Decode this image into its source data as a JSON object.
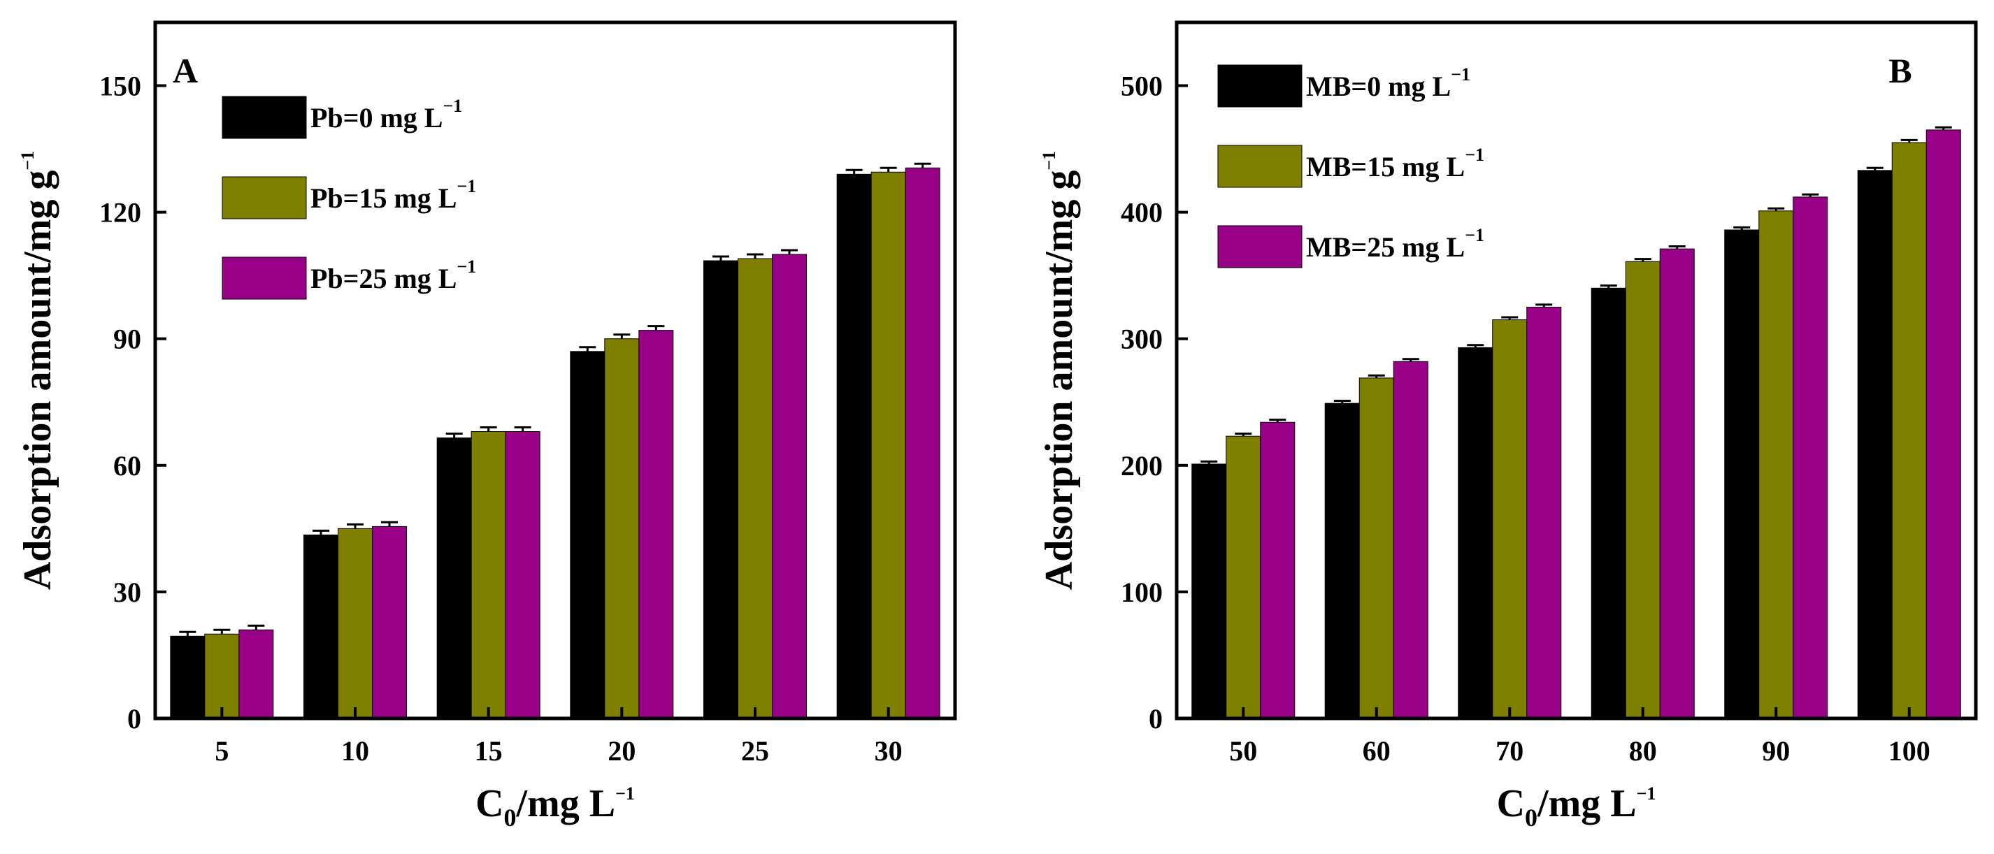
{
  "chart_data": [
    {
      "type": "bar",
      "panel_label": "A",
      "categories": [
        "5",
        "10",
        "15",
        "20",
        "25",
        "30"
      ],
      "series": [
        {
          "name": "Pb=0 mg L",
          "name_sup": "−1",
          "color": "#000000",
          "values": [
            19.5,
            43.5,
            66.5,
            87,
            108.5,
            129
          ],
          "errors": [
            1,
            1,
            1,
            1,
            1,
            1
          ]
        },
        {
          "name": "Pb=15 mg L",
          "name_sup": "−1",
          "color": "#808000",
          "values": [
            20,
            45,
            68,
            90,
            109,
            129.5
          ],
          "errors": [
            1,
            1,
            1,
            1,
            1,
            1
          ]
        },
        {
          "name": "Pb=25 mg L",
          "name_sup": "−1",
          "color": "#990088",
          "values": [
            21,
            45.5,
            68,
            92,
            110,
            130.5
          ],
          "errors": [
            1,
            1,
            1,
            1,
            1,
            1
          ]
        }
      ],
      "ylim": [
        0,
        165
      ],
      "yticks": [
        0,
        30,
        60,
        90,
        120,
        150
      ],
      "xlabel": {
        "main": "C",
        "sub": "0",
        "rest": "/mg L",
        "sup": "−1"
      },
      "ylabel": {
        "main": "Adsorption amount/mg g",
        "sup": "−1"
      },
      "legend_position": "top-left"
    },
    {
      "type": "bar",
      "panel_label": "B",
      "categories": [
        "50",
        "60",
        "70",
        "80",
        "90",
        "100"
      ],
      "series": [
        {
          "name": "MB=0 mg L",
          "name_sup": "−1",
          "color": "#000000",
          "values": [
            201,
            249,
            293,
            340,
            386,
            433
          ],
          "errors": [
            2,
            2,
            2,
            2,
            2,
            2
          ]
        },
        {
          "name": "MB=15 mg L",
          "name_sup": "−1",
          "color": "#808000",
          "values": [
            223,
            269,
            315,
            361,
            401,
            455
          ],
          "errors": [
            2,
            2,
            2,
            2,
            2,
            2
          ]
        },
        {
          "name": "MB=25 mg L",
          "name_sup": "−1",
          "color": "#990088",
          "values": [
            234,
            282,
            325,
            371,
            412,
            465
          ],
          "errors": [
            2,
            2,
            2,
            2,
            2,
            2
          ]
        }
      ],
      "ylim": [
        0,
        550
      ],
      "yticks": [
        0,
        100,
        200,
        300,
        400,
        500
      ],
      "xlabel": {
        "main": "C",
        "sub": "0",
        "rest": "/mg L",
        "sup": "−1"
      },
      "ylabel": {
        "main": "Adsorption amount/mg g",
        "sup": "−1"
      },
      "legend_position": "top-left"
    }
  ]
}
